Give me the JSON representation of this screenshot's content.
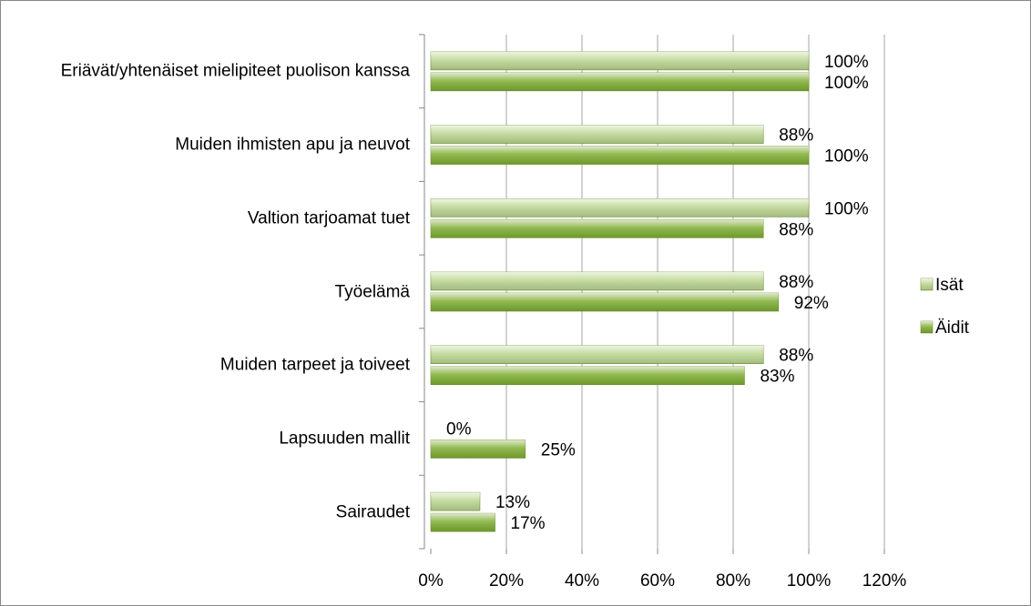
{
  "chart_data": {
    "type": "bar",
    "orientation": "horizontal",
    "categories": [
      "Eriävät/yhtenäiset mielipiteet puolison kanssa",
      "Muiden ihmisten apu ja neuvot",
      "Valtion tarjoamat tuet",
      "Työelämä",
      "Muiden tarpeet ja toiveet",
      "Lapsuuden mallit",
      "Sairaudet"
    ],
    "series": [
      {
        "name": "Isät",
        "color": "#bcd691",
        "values": [
          100,
          88,
          100,
          88,
          88,
          0,
          13
        ],
        "value_labels": [
          "100%",
          "88%",
          "100%",
          "88%",
          "88%",
          "0%",
          "13%"
        ]
      },
      {
        "name": "Äidit",
        "color": "#7fae33",
        "values": [
          100,
          100,
          88,
          92,
          83,
          25,
          17
        ],
        "value_labels": [
          "100%",
          "100%",
          "88%",
          "92%",
          "83%",
          "25%",
          "17%"
        ]
      }
    ],
    "xlim": [
      0,
      120
    ],
    "xticks": [
      {
        "value": 0,
        "label": "0%"
      },
      {
        "value": 20,
        "label": "20%"
      },
      {
        "value": 40,
        "label": "40%"
      },
      {
        "value": 60,
        "label": "60%"
      },
      {
        "value": 80,
        "label": "80%"
      },
      {
        "value": 100,
        "label": "100%"
      },
      {
        "value": 120,
        "label": "120%"
      }
    ],
    "grid": true,
    "legend": "right"
  }
}
